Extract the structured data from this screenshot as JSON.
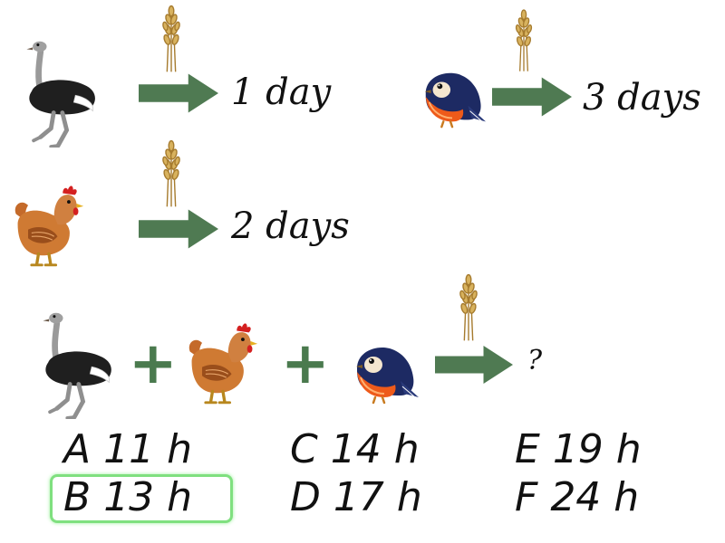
{
  "puzzle": {
    "facts": [
      {
        "animal": "ostrich",
        "food": "wheat",
        "duration": "1 day"
      },
      {
        "animal": "bird",
        "food": "wheat",
        "duration": "3 days"
      },
      {
        "animal": "hen",
        "food": "wheat",
        "duration": "2 days"
      }
    ],
    "combined": {
      "animals": [
        "ostrich",
        "hen",
        "bird"
      ],
      "food": "wheat",
      "result": "?"
    }
  },
  "answers": [
    {
      "letter": "A",
      "value": "11 h",
      "selected": false
    },
    {
      "letter": "B",
      "value": "13 h",
      "selected": true
    },
    {
      "letter": "C",
      "value": "14 h",
      "selected": false
    },
    {
      "letter": "D",
      "value": "17 h",
      "selected": false
    },
    {
      "letter": "E",
      "value": "19 h",
      "selected": false
    },
    {
      "letter": "F",
      "value": "24 h",
      "selected": false
    }
  ],
  "colors": {
    "arrow": "#4f7a52",
    "plus": "#4a7a4e",
    "selection": "#7fe07f",
    "wheat": "#c9a04a"
  },
  "icons": [
    "ostrich-icon",
    "hen-icon",
    "bird-icon",
    "wheat-icon",
    "arrow-right-icon",
    "plus-icon"
  ]
}
